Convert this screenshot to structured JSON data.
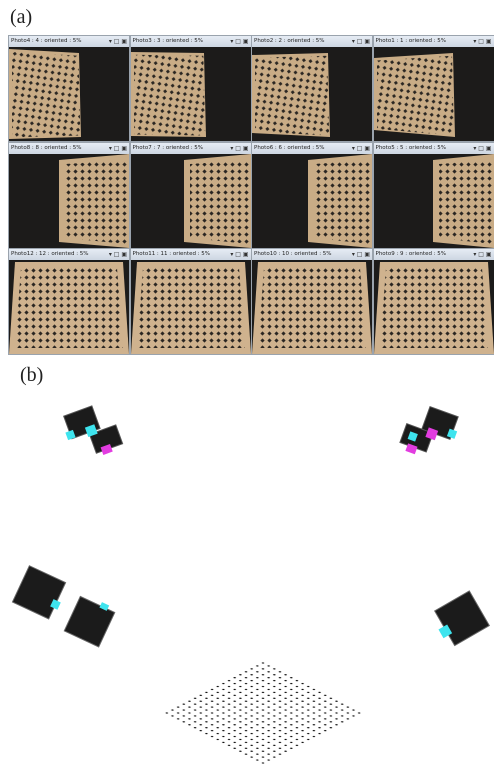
{
  "labels": {
    "a": "(a)",
    "b": "(b)"
  },
  "windows": [
    {
      "title": "Photo4 : 4 : oriented : 5%"
    },
    {
      "title": "Photo3 : 3 : oriented : 5%"
    },
    {
      "title": "Photo2 : 2 : oriented : 5%"
    },
    {
      "title": "Photo1 : 1 : oriented : 5%"
    },
    {
      "title": "Photo8 : 8 : oriented : 5%"
    },
    {
      "title": "Photo7 : 7 : oriented : 5%"
    },
    {
      "title": "Photo6 : 6 : oriented : 5%"
    },
    {
      "title": "Photo5 : 5 : oriented : 5%"
    },
    {
      "title": "Photo12 : 12 : oriented : 5%"
    },
    {
      "title": "Photo11 : 11 : oriented : 5%"
    },
    {
      "title": "Photo10 : 10 : oriented : 5%"
    },
    {
      "title": "Photo9 : 9 : oriented : 5%"
    }
  ]
}
